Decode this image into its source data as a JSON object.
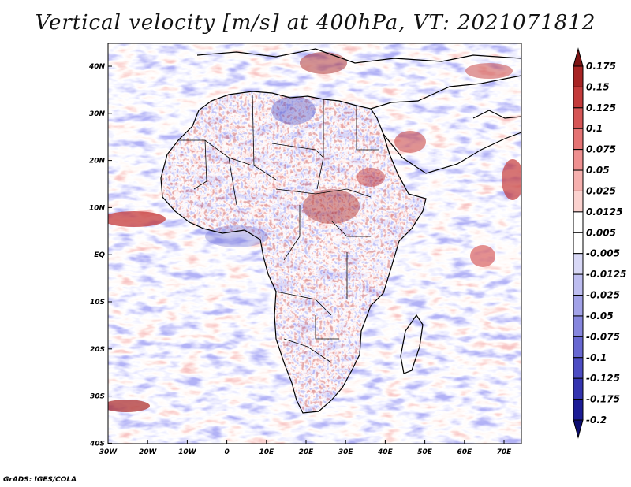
{
  "title": "Vertical velocity [m/s] at 400hPa, VT: 2021071812",
  "credit": "GrADS: IGES/COLA",
  "map": {
    "lat_ticks": [
      "40N",
      "30N",
      "20N",
      "10N",
      "EQ",
      "10S",
      "20S",
      "30S",
      "40S"
    ],
    "lon_ticks": [
      "30W",
      "20W",
      "10W",
      "0",
      "10E",
      "20E",
      "30E",
      "40E",
      "50E",
      "60E",
      "70E"
    ]
  },
  "colorbar": {
    "levels": [
      "0.175",
      "0.15",
      "0.125",
      "0.1",
      "0.075",
      "0.05",
      "0.025",
      "0.0125",
      "0.005",
      "-0.005",
      "-0.0125",
      "-0.025",
      "-0.05",
      "-0.075",
      "-0.1",
      "-0.125",
      "-0.175",
      "-0.2"
    ],
    "colors": [
      "#7d1414",
      "#a82424",
      "#c43a3a",
      "#d65555",
      "#e57373",
      "#ef9090",
      "#f6b0ae",
      "#fbd2cf",
      "#ffffff",
      "#ffffff",
      "#d8d8f6",
      "#bdbdf0",
      "#a2a2e8",
      "#8686de",
      "#6868d2",
      "#4d4dc4",
      "#3434b0",
      "#1c1c96",
      "#0c0c70"
    ]
  }
}
